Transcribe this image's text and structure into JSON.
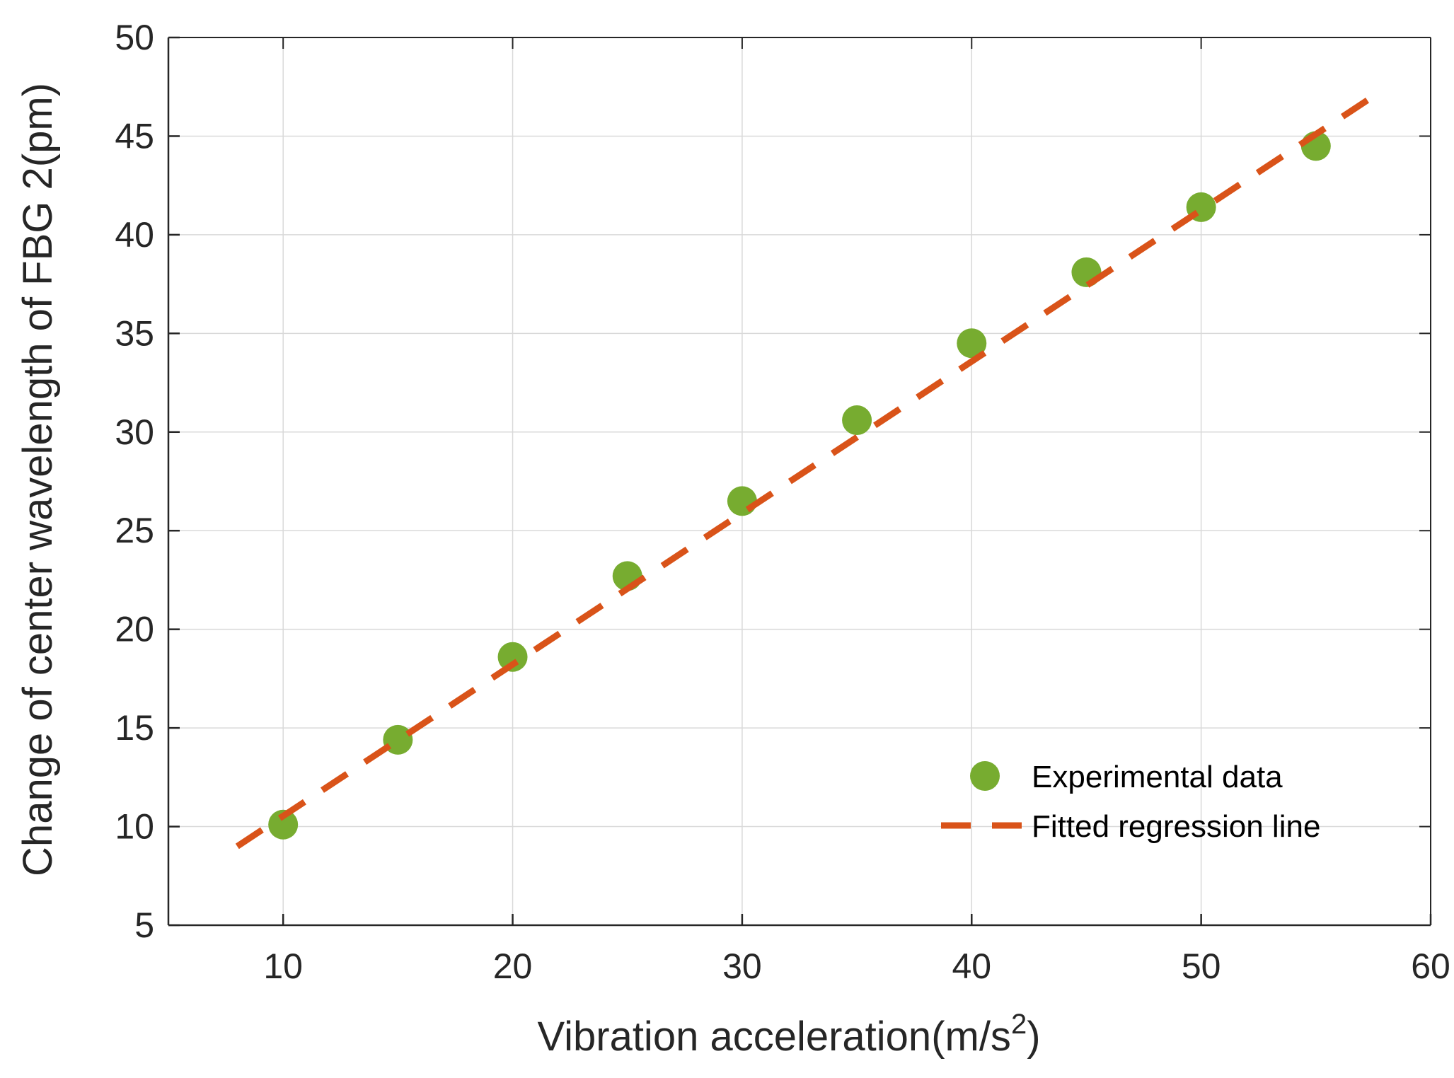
{
  "chart_data": {
    "type": "scatter",
    "title": "",
    "xlabel_main": "Vibration acceleration(m/s",
    "xlabel_sup": "2",
    "xlabel_tail": ")",
    "ylabel": "Change of center wavelength of FBG 2(pm)",
    "xlim": [
      5,
      60
    ],
    "ylim": [
      5,
      50
    ],
    "xticks": [
      10,
      20,
      30,
      40,
      50,
      60
    ],
    "yticks": [
      5,
      10,
      15,
      20,
      25,
      30,
      35,
      40,
      45,
      50
    ],
    "grid": true,
    "legend_position": "bottom-right",
    "series": [
      {
        "name": "Experimental data",
        "kind": "scatter",
        "color": "#77AC30",
        "x": [
          10,
          15,
          20,
          25,
          30,
          35,
          40,
          45,
          50,
          55
        ],
        "y": [
          10.1,
          14.4,
          18.6,
          22.7,
          26.5,
          30.6,
          34.5,
          38.1,
          41.4,
          44.5
        ]
      },
      {
        "name": "Fitted regression line",
        "kind": "line",
        "style": "dashed",
        "color": "#D95319",
        "x": [
          8,
          58
        ],
        "y": [
          9.0,
          47.4
        ]
      }
    ]
  }
}
